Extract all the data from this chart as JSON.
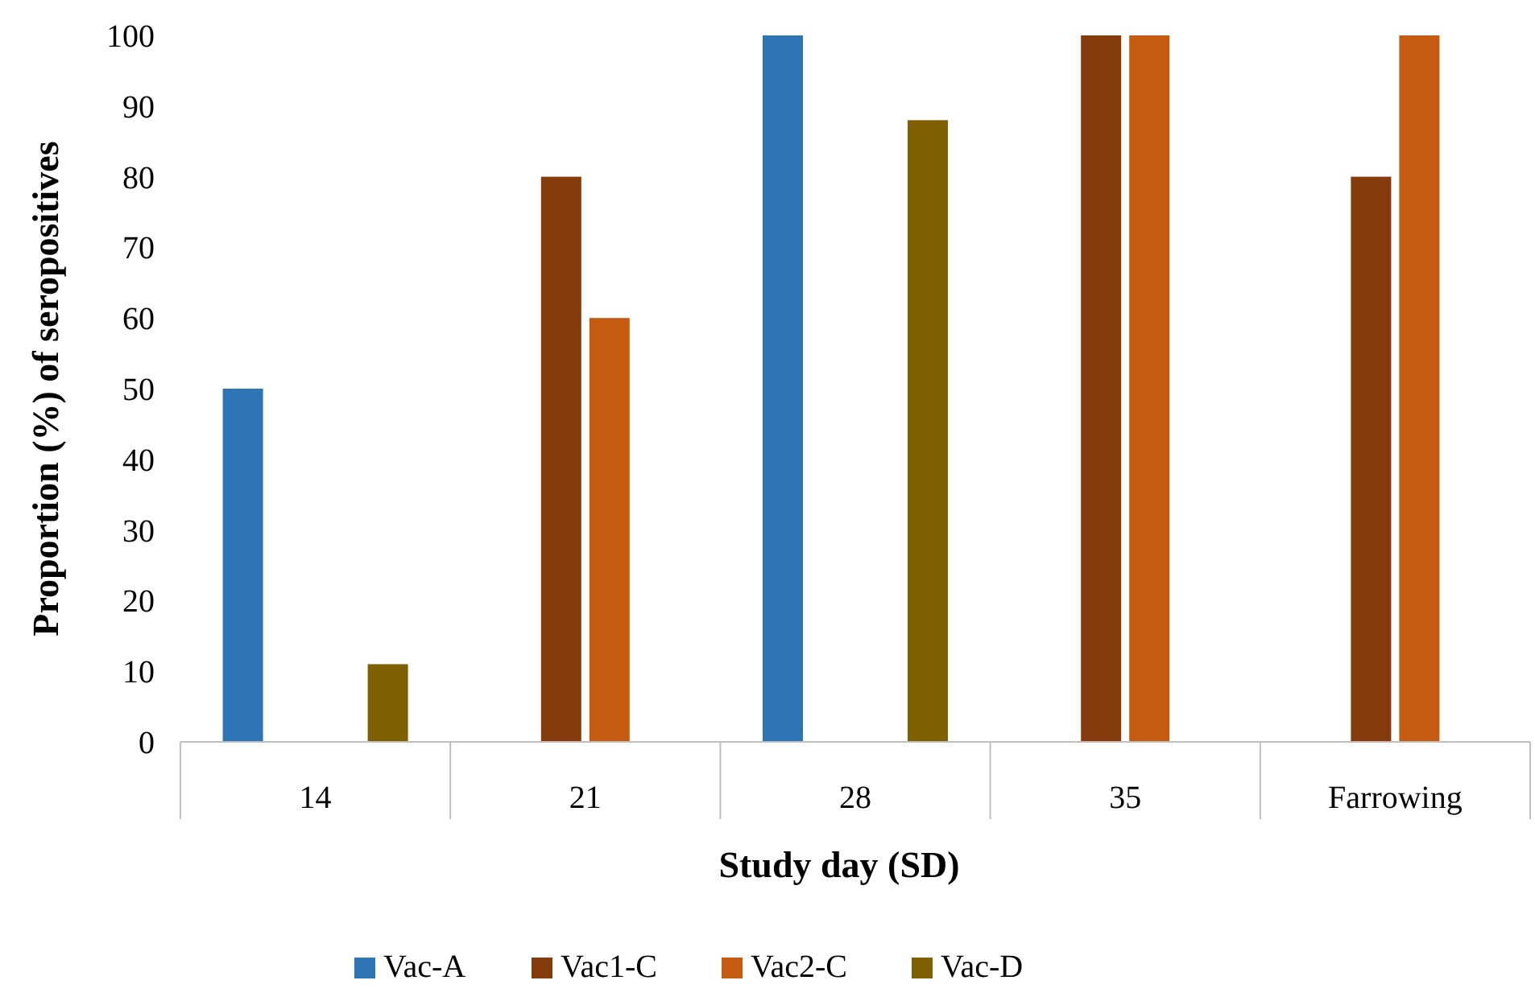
{
  "chart_data": {
    "type": "bar",
    "xlabel": "Study day (SD)",
    "ylabel": "Proportion (%) of seropositives",
    "categories": [
      "14",
      "21",
      "28",
      "35",
      "Farrowing"
    ],
    "series": [
      {
        "name": "Vac-A",
        "color": "#2e75b6",
        "values": [
          50,
          0,
          100,
          0,
          0
        ]
      },
      {
        "name": "Vac1-C",
        "color": "#843c0c",
        "values": [
          0,
          80,
          0,
          100,
          80
        ]
      },
      {
        "name": "Vac2-C",
        "color": "#c55a11",
        "values": [
          0,
          60,
          0,
          100,
          100
        ]
      },
      {
        "name": "Vac-D",
        "color": "#7f6000",
        "values": [
          11,
          0,
          88,
          0,
          0
        ]
      }
    ],
    "ylim": [
      0,
      100
    ],
    "yticks": [
      0,
      10,
      20,
      30,
      40,
      50,
      60,
      70,
      80,
      90,
      100
    ],
    "grid": false,
    "legend": "bottom"
  }
}
